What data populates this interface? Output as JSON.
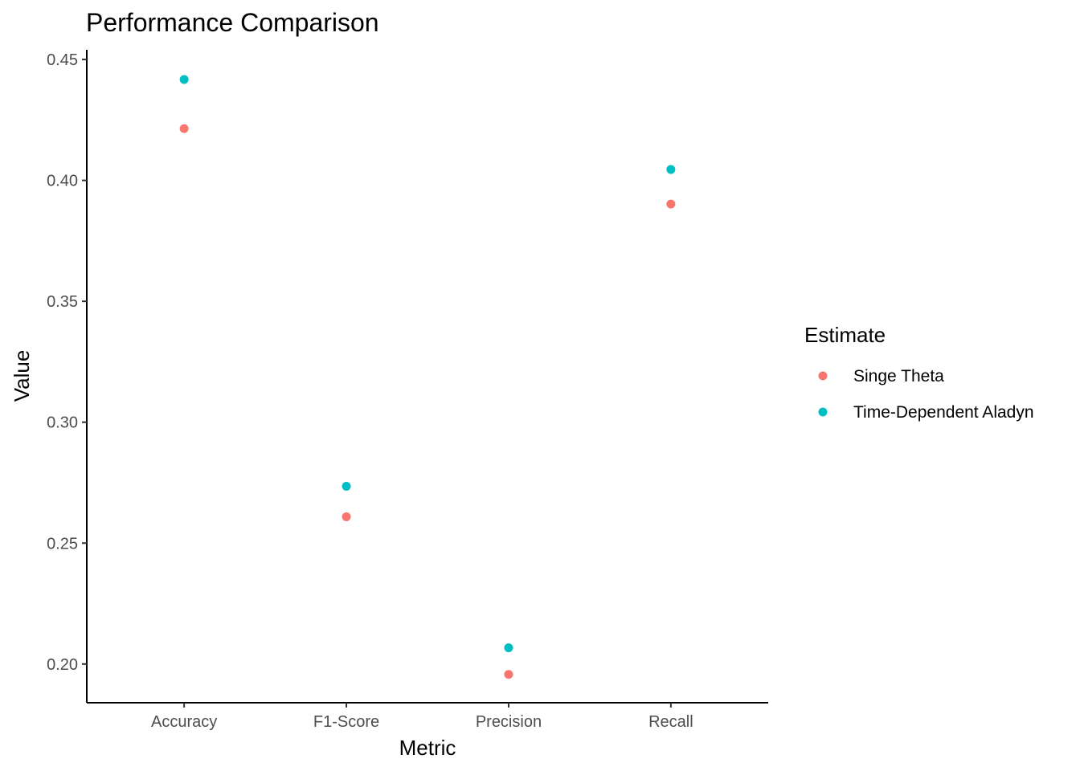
{
  "chart_data": {
    "type": "scatter",
    "title": "Performance Comparison",
    "xlabel": "Metric",
    "ylabel": "Value",
    "categories": [
      "Accuracy",
      "F1-Score",
      "Precision",
      "Recall"
    ],
    "ylim": [
      0.184,
      0.454
    ],
    "yticks": [
      0.2,
      0.25,
      0.3,
      0.35,
      0.4,
      0.45
    ],
    "ytick_labels": [
      "0.20",
      "0.25",
      "0.30",
      "0.35",
      "0.40",
      "0.45"
    ],
    "grid": false,
    "legend": {
      "title": "Estimate",
      "placement": "right"
    },
    "series": [
      {
        "name": "Singe Theta",
        "color": "#F8766D",
        "values": [
          0.4214,
          0.2609,
          0.1957,
          0.3902
        ]
      },
      {
        "name": "Time-Dependent Aladyn",
        "color": "#00BFC4",
        "values": [
          0.4417,
          0.2735,
          0.2067,
          0.4045
        ]
      }
    ]
  }
}
